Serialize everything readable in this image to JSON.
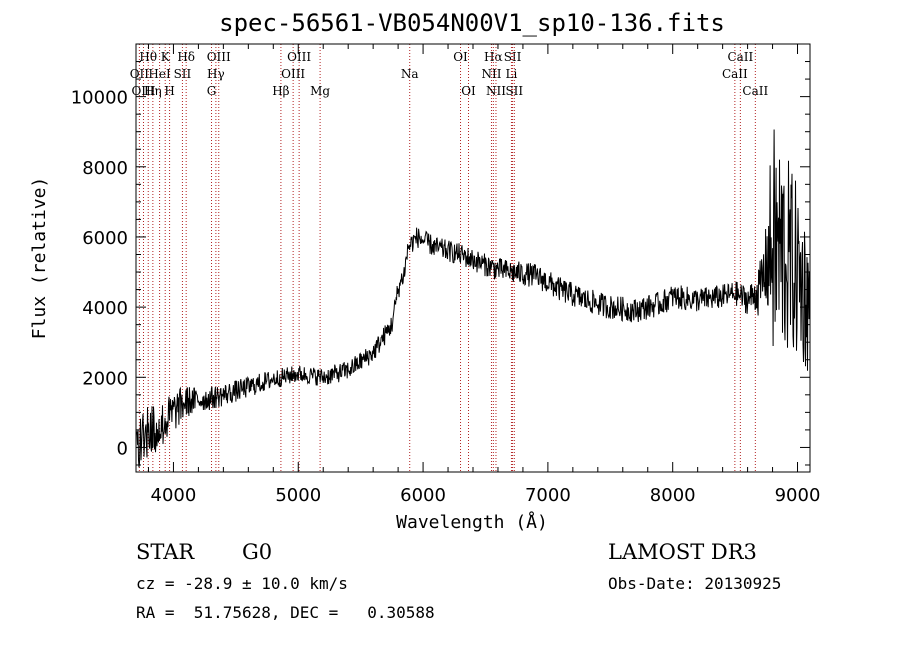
{
  "chart_data": {
    "type": "line",
    "title": "spec-56561-VB054N00V1_sp10-136.fits",
    "xlabel": "Wavelength (Å)",
    "ylabel": "Flux (relative)",
    "xlim": [
      3700,
      9100
    ],
    "ylim": [
      -700,
      11500
    ],
    "x_ticks": [
      4000,
      5000,
      6000,
      7000,
      8000,
      9000
    ],
    "y_ticks": [
      0,
      2000,
      4000,
      6000,
      8000,
      10000
    ],
    "continuum_anchors": {
      "x": [
        3700,
        3800,
        3900,
        4000,
        4100,
        4300,
        4500,
        4800,
        5000,
        5200,
        5400,
        5600,
        5750,
        5800,
        5850,
        5880,
        5950,
        6100,
        6300,
        6500,
        6580,
        6700,
        6900,
        7100,
        7300,
        7500,
        7700,
        7900,
        8000,
        8200,
        8400,
        8500,
        8600,
        8700,
        8750,
        8800,
        8900,
        9000,
        9100
      ],
      "y": [
        200,
        400,
        600,
        1000,
        1300,
        1400,
        1600,
        1950,
        2100,
        2000,
        2200,
        2700,
        3500,
        4500,
        5000,
        5700,
        6000,
        5700,
        5500,
        5200,
        5100,
        5000,
        4900,
        4500,
        4200,
        4000,
        3900,
        4100,
        4300,
        4200,
        4300,
        4400,
        4200,
        4500,
        5200,
        5800,
        5500,
        5000,
        4000
      ]
    },
    "noise_amplitude": {
      "x": [
        3700,
        4000,
        4200,
        5000,
        5800,
        6000,
        7000,
        8000,
        8500,
        8650,
        8750,
        8800,
        9000,
        9100
      ],
      "y": [
        900,
        600,
        350,
        250,
        300,
        300,
        350,
        350,
        350,
        450,
        1200,
        3500,
        2500,
        2000
      ]
    },
    "lines": [
      {
        "name": "Hθ",
        "x": 3798,
        "row": 0
      },
      {
        "name": "OII",
        "x": 3727,
        "row": 1
      },
      {
        "name": "OIII",
        "x": 3760,
        "row": 2
      },
      {
        "name": "Hη",
        "x": 3835,
        "row": 2
      },
      {
        "name": "HeI",
        "x": 3889,
        "row": 1
      },
      {
        "name": "K",
        "x": 3934,
        "row": 0
      },
      {
        "name": "H",
        "x": 3969,
        "row": 2
      },
      {
        "name": "SII",
        "x": 4072,
        "row": 1
      },
      {
        "name": "Hδ",
        "x": 4102,
        "row": 0
      },
      {
        "name": "OIII",
        "x": 4363,
        "row": 0
      },
      {
        "name": "Hγ",
        "x": 4340,
        "row": 1
      },
      {
        "name": "G",
        "x": 4305,
        "row": 2
      },
      {
        "name": "Hβ",
        "x": 4861,
        "row": 2
      },
      {
        "name": "OIII",
        "x": 5007,
        "row": 0
      },
      {
        "name": "OIII",
        "x": 4959,
        "row": 1
      },
      {
        "name": "Mg",
        "x": 5175,
        "row": 2
      },
      {
        "name": "Na",
        "x": 5893,
        "row": 1
      },
      {
        "name": "OI",
        "x": 6300,
        "row": 0
      },
      {
        "name": "OI",
        "x": 6364,
        "row": 2
      },
      {
        "name": "Hα",
        "x": 6563,
        "row": 0
      },
      {
        "name": "NII",
        "x": 6548,
        "row": 1
      },
      {
        "name": "NII",
        "x": 6584,
        "row": 2
      },
      {
        "name": "SII",
        "x": 6717,
        "row": 0
      },
      {
        "name": "Li",
        "x": 6708,
        "row": 1
      },
      {
        "name": "SII",
        "x": 6731,
        "row": 2
      },
      {
        "name": "CaII",
        "x": 8542,
        "row": 0
      },
      {
        "name": "CaII",
        "x": 8498,
        "row": 1
      },
      {
        "name": "CaII",
        "x": 8662,
        "row": 2
      }
    ]
  },
  "info": {
    "object_class": "STAR",
    "subclass": "G0",
    "survey": "LAMOST DR3",
    "redshift": "cz = -28.9 ± 10.0 km/s",
    "obs_date": "Obs-Date: 20130925",
    "coords": "RA =  51.75628, DEC =   0.30588"
  },
  "colors": {
    "line_marker": "#b22222",
    "spectrum": "#000000"
  }
}
